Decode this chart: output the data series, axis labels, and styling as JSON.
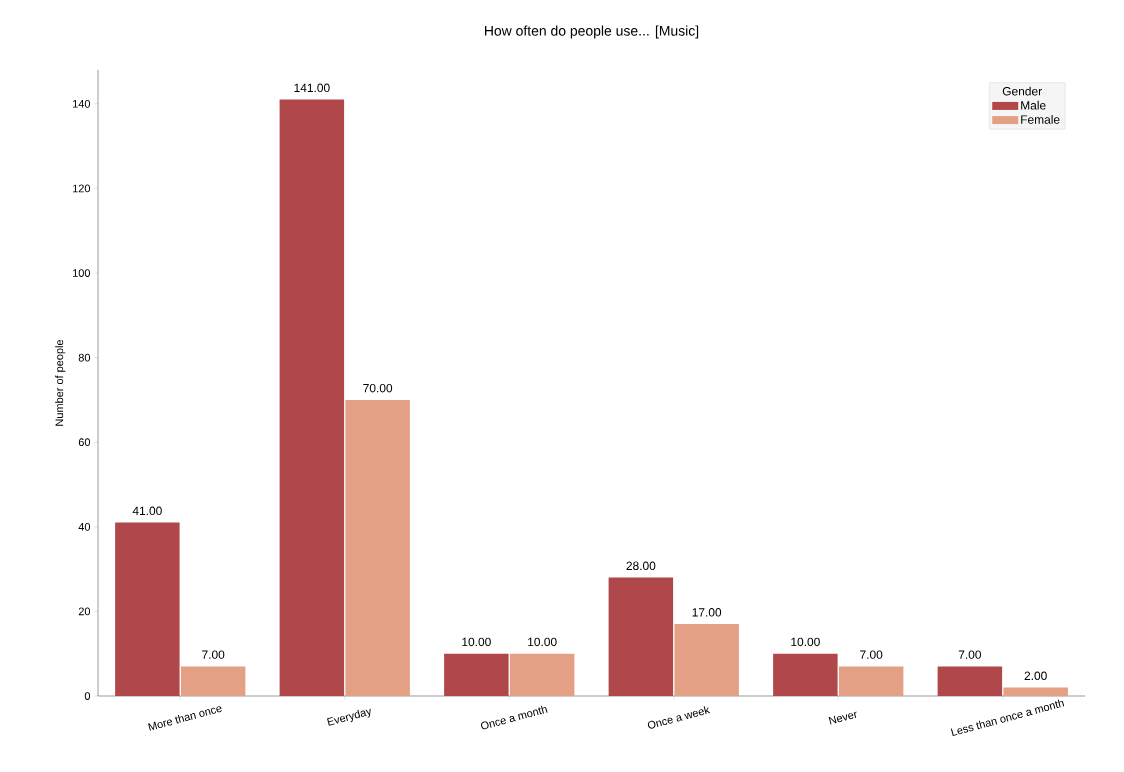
{
  "chart_data": {
    "type": "bar",
    "title": "How often do people use... [Music]",
    "ylabel": "Number of people",
    "legend_title": "Gender",
    "legend": "top right",
    "categories": [
      "More than once",
      "Everyday",
      "Once a month",
      "Once a week",
      "Never",
      "Less than once a month"
    ],
    "series": [
      {
        "name": "Male",
        "color": "#b0474a",
        "values": [
          41,
          141,
          10,
          28,
          10,
          7
        ],
        "value_labels": [
          "41.00",
          "141.00",
          "10.00",
          "28.00",
          "10.00",
          "7.00"
        ]
      },
      {
        "name": "Female",
        "color": "#e3a084",
        "values": [
          7,
          70,
          10,
          17,
          7,
          2
        ],
        "value_labels": [
          "7.00",
          "70.00",
          "10.00",
          "17.00",
          "7.00",
          "2.00"
        ]
      }
    ],
    "ylim": [
      0,
      148
    ],
    "yticks": [
      0,
      20,
      40,
      60,
      80,
      100,
      120,
      140
    ],
    "grid": false
  }
}
